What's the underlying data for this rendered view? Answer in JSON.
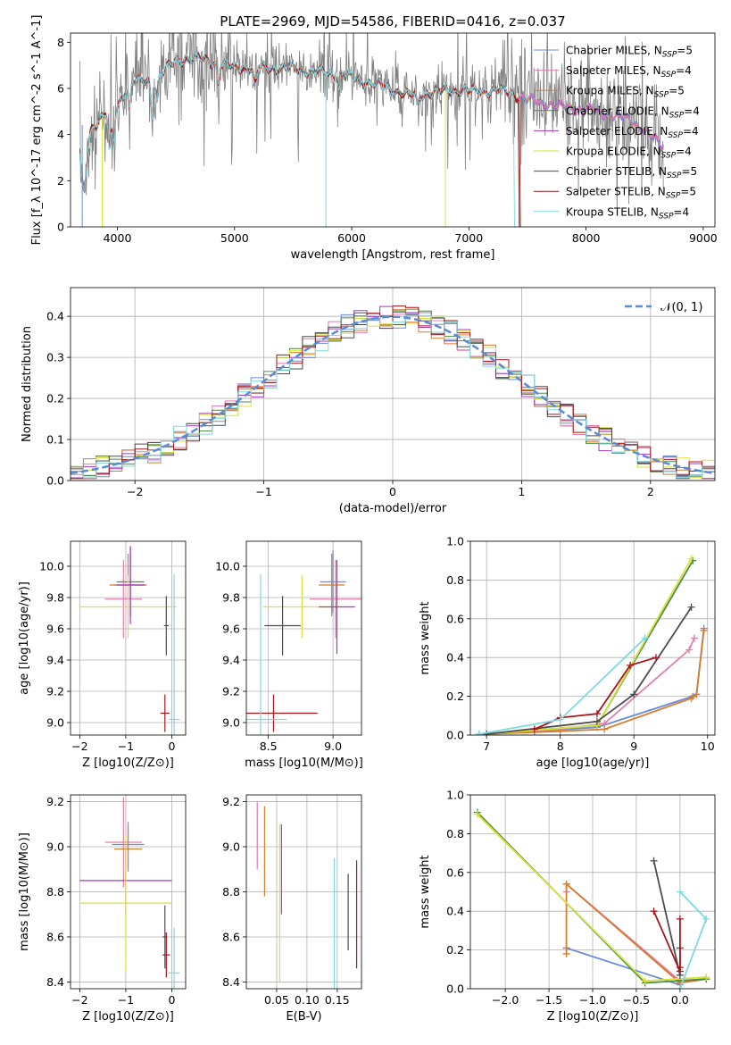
{
  "figure": {
    "title": "PLATE=2969, MJD=54586, FIBERID=0416, z=0.037"
  },
  "colors": {
    "Chabrier MILES": "#6a8bd8",
    "Salpeter MILES": "#e07fb0",
    "Kroupa MILES": "#d77c2b",
    "Chabrier ELODIE": "#4a8a4a",
    "Salpeter ELODIE": "#a23bc4",
    "Kroupa ELODIE": "#d9e23a",
    "Chabrier STELIB": "#4d4d4d",
    "Salpeter STELIB": "#a8151b",
    "Kroupa STELIB": "#7fd9e0",
    "data": "#808080",
    "extra_green": "#9ad23a",
    "normal_curve": "#5b8bd6"
  },
  "chart_data": [
    {
      "panel": "spectrum",
      "type": "line",
      "xlabel": "wavelength [Angstrom, rest frame]",
      "ylabel": "Flux [f_λ 10^-17 erg cm^-2 s^-1 A^-1]",
      "xlim": [
        3600,
        9100
      ],
      "ylim": [
        0,
        8.4
      ],
      "xticks": [
        4000,
        5000,
        6000,
        7000,
        8000,
        9000
      ],
      "yticks": [
        0,
        2,
        4,
        6,
        8
      ],
      "legend_position": "top-right",
      "legend": [
        {
          "name": "Chabrier MILES, N_SSP=5",
          "model": "Chabrier MILES"
        },
        {
          "name": "Salpeter MILES, N_SSP=4",
          "model": "Salpeter MILES"
        },
        {
          "name": "Kroupa MILES, N_SSP=5",
          "model": "Kroupa MILES"
        },
        {
          "name": "Chabrier ELODIE, N_SSP=4",
          "model": "Chabrier ELODIE"
        },
        {
          "name": "Salpeter ELODIE, N_SSP=4",
          "model": "Salpeter ELODIE"
        },
        {
          "name": "Kroupa ELODIE, N_SSP=4",
          "model": "Kroupa ELODIE"
        },
        {
          "name": "Chabrier STELIB, N_SSP=5",
          "model": "Chabrier STELIB"
        },
        {
          "name": "Salpeter STELIB, N_SSP=5",
          "model": "Salpeter STELIB"
        },
        {
          "name": "Kroupa STELIB, N_SSP=4",
          "model": "Kroupa STELIB"
        }
      ],
      "continuum_points": [
        [
          3680,
          4.5
        ],
        [
          3750,
          4.2
        ],
        [
          3900,
          4.9
        ],
        [
          4000,
          5.2
        ],
        [
          4100,
          6.3
        ],
        [
          4300,
          6.3
        ],
        [
          4500,
          7.2
        ],
        [
          4700,
          7.3
        ],
        [
          5000,
          6.9
        ],
        [
          5300,
          6.9
        ],
        [
          5600,
          6.8
        ],
        [
          5900,
          6.6
        ],
        [
          6200,
          6.2
        ],
        [
          6500,
          5.7
        ],
        [
          6800,
          5.9
        ],
        [
          7000,
          5.9
        ],
        [
          7300,
          5.9
        ],
        [
          7500,
          5.5
        ],
        [
          7800,
          5.2
        ],
        [
          8100,
          5.0
        ],
        [
          8400,
          4.6
        ],
        [
          8650,
          3.5
        ]
      ],
      "models_end": {
        "Chabrier STELIB": 7420,
        "Salpeter STELIB": 7430,
        "Kroupa MILES": 7420,
        "Kroupa STELIB": 7380
      }
    },
    {
      "panel": "residuals",
      "type": "histogram",
      "xlabel": "(data-model)/error",
      "ylabel": "Normed distribution",
      "xlim": [
        -2.5,
        2.5
      ],
      "ylim": [
        0,
        0.47
      ],
      "xticks": [
        -2,
        -1,
        0,
        1,
        2
      ],
      "yticks": [
        0.0,
        0.1,
        0.2,
        0.3,
        0.4
      ],
      "bin_width": 0.1,
      "reference_curve": "N(0,1)",
      "legend": [
        {
          "name": "𝒩(0, 1)"
        }
      ],
      "legend_position": "top-right"
    },
    {
      "panel": "age_vs_Z",
      "type": "errorbar",
      "xlabel": "Z [log10(Z/Z⊙)]",
      "ylabel": "age [log10(age/yr)]",
      "xlim": [
        -2.2,
        0.3
      ],
      "ylim": [
        8.92,
        10.16
      ],
      "xticks": [
        -2,
        -1,
        0
      ],
      "yticks": [
        9.0,
        9.2,
        9.4,
        9.6,
        9.8,
        10.0
      ],
      "points": [
        {
          "model": "Chabrier MILES",
          "x": -0.9,
          "xerr": 0.35,
          "y": 9.88,
          "yerr": 0.2
        },
        {
          "model": "Salpeter MILES",
          "x": -1.05,
          "xerr": 0.4,
          "y": 9.79,
          "yerr": 0.25
        },
        {
          "model": "Kroupa MILES",
          "x": -0.95,
          "xerr": 0.4,
          "y": 9.88,
          "yerr": 0.2
        },
        {
          "model": "Chabrier ELODIE",
          "x": -0.9,
          "xerr": 0.3,
          "y": 9.9,
          "yerr": 0.22
        },
        {
          "model": "Kroupa ELODIE",
          "x": -0.95,
          "xerr": 1.05,
          "y": 9.74,
          "yerr": 0.2
        },
        {
          "model": "Salpeter ELODIE",
          "x": -0.9,
          "xerr": 0.3,
          "y": 9.88,
          "yerr": 0.25
        },
        {
          "model": "Chabrier STELIB",
          "x": -0.12,
          "xerr": 0.05,
          "y": 9.62,
          "yerr": 0.19
        },
        {
          "model": "Salpeter STELIB",
          "x": -0.15,
          "xerr": 0.1,
          "y": 9.06,
          "yerr": 0.12
        },
        {
          "model": "Kroupa STELIB",
          "x": 0.05,
          "xerr": 0.12,
          "y": 9.02,
          "yerr": 0.93
        }
      ]
    },
    {
      "panel": "age_vs_mass",
      "type": "errorbar",
      "xlabel": "mass [log10(M/M⊙)]",
      "ylabel": "",
      "xlim": [
        8.33,
        9.22
      ],
      "ylim": [
        8.92,
        10.16
      ],
      "xticks": [
        8.5,
        9.0
      ],
      "yticks": [
        9.0,
        9.2,
        9.4,
        9.6,
        9.8,
        10.0
      ],
      "points": [
        {
          "model": "Chabrier MILES",
          "x": 9.0,
          "xerr": 0.1,
          "y": 9.9,
          "yerr": 0.2
        },
        {
          "model": "Salpeter MILES",
          "x": 9.02,
          "xerr": 0.2,
          "y": 9.79,
          "yerr": 0.25
        },
        {
          "model": "Kroupa MILES",
          "x": 8.99,
          "xerr": 0.1,
          "y": 9.88,
          "yerr": 0.2
        },
        {
          "model": "Kroupa ELODIE",
          "x": 8.76,
          "xerr": 0.3,
          "y": 9.74,
          "yerr": 0.2
        },
        {
          "model": "Salpeter ELODIE",
          "x": 9.03,
          "xerr": 0.14,
          "y": 9.74,
          "yerr": 0.3
        },
        {
          "model": "Chabrier STELIB",
          "x": 8.61,
          "xerr": 0.14,
          "y": 9.62,
          "yerr": 0.19
        },
        {
          "model": "Salpeter STELIB",
          "x": 8.54,
          "xerr": 0.34,
          "y": 9.06,
          "yerr": 0.12
        },
        {
          "model": "Kroupa STELIB",
          "x": 8.44,
          "xerr": 0.2,
          "y": 9.02,
          "yerr": 0.93
        }
      ]
    },
    {
      "panel": "mass_weight_vs_age",
      "type": "line",
      "xlabel": "age [log10(age/yr)]",
      "ylabel": "mass weight",
      "xlim": [
        6.78,
        10.1
      ],
      "ylim": [
        0,
        1.0
      ],
      "xticks": [
        7,
        8,
        9,
        10
      ],
      "yticks": [
        0.0,
        0.2,
        0.4,
        0.6,
        0.8,
        1.0
      ],
      "series": [
        {
          "model": "Chabrier MILES",
          "x": [
            6.9,
            7.65,
            8.5,
            9.8,
            9.85,
            9.95
          ],
          "y": [
            0.005,
            0.02,
            0.04,
            0.2,
            0.21,
            0.55
          ]
        },
        {
          "model": "Salpeter MILES",
          "x": [
            7.0,
            8.0,
            8.6,
            9.75,
            9.82
          ],
          "y": [
            0.005,
            0.03,
            0.06,
            0.44,
            0.5
          ]
        },
        {
          "model": "Kroupa MILES",
          "x": [
            7.0,
            8.0,
            8.6,
            9.78,
            9.85,
            9.95
          ],
          "y": [
            0.005,
            0.02,
            0.03,
            0.19,
            0.21,
            0.54
          ]
        },
        {
          "model": "Chabrier ELODIE",
          "x": [
            7.0,
            8.5,
            9.8
          ],
          "y": [
            0.005,
            0.05,
            0.9
          ]
        },
        {
          "model": "Kroupa ELODIE",
          "x": [
            7.0,
            8.5,
            9.78
          ],
          "y": [
            0.005,
            0.05,
            0.91
          ]
        },
        {
          "model": "Chabrier STELIB",
          "x": [
            7.0,
            8.5,
            9.0,
            9.78
          ],
          "y": [
            0.005,
            0.07,
            0.21,
            0.66
          ]
        },
        {
          "model": "Salpeter STELIB",
          "x": [
            7.65,
            8.0,
            8.5,
            8.95,
            9.3
          ],
          "y": [
            0.03,
            0.09,
            0.11,
            0.36,
            0.4
          ]
        },
        {
          "model": "Kroupa STELIB",
          "x": [
            6.9,
            8.0,
            9.15
          ],
          "y": [
            0.005,
            0.08,
            0.5
          ]
        }
      ]
    },
    {
      "panel": "mass_vs_Z",
      "type": "errorbar",
      "xlabel": "Z [log10(Z/Z⊙)]",
      "ylabel": "mass [log10(M/M⊙)]",
      "xlim": [
        -2.2,
        0.3
      ],
      "ylim": [
        8.37,
        9.23
      ],
      "xticks": [
        -2,
        -1,
        0
      ],
      "yticks": [
        8.4,
        8.6,
        8.8,
        9.0,
        9.2
      ],
      "points": [
        {
          "model": "Chabrier MILES",
          "x": -0.95,
          "xerr": 0.35,
          "y": 9.01,
          "yerr": 0.1
        },
        {
          "model": "Salpeter MILES",
          "x": -1.05,
          "xerr": 0.4,
          "y": 9.02,
          "yerr": 0.2
        },
        {
          "model": "Kroupa MILES",
          "x": -0.95,
          "xerr": 0.3,
          "y": 8.99,
          "yerr": 0.1
        },
        {
          "model": "Salpeter ELODIE",
          "x": -1.0,
          "xerr": 1.0,
          "y": 8.85,
          "yerr": 0.15
        },
        {
          "model": "Kroupa ELODIE",
          "x": -1.0,
          "xerr": 1.0,
          "y": 8.75,
          "yerr": 0.3
        },
        {
          "model": "Chabrier STELIB",
          "x": -0.15,
          "xerr": 0.05,
          "y": 8.6,
          "yerr": 0.14
        },
        {
          "model": "Salpeter STELIB",
          "x": -0.12,
          "xerr": 0.08,
          "y": 8.52,
          "yerr": 0.1
        },
        {
          "model": "Kroupa STELIB",
          "x": 0.05,
          "xerr": 0.12,
          "y": 8.44,
          "yerr": 0.2
        }
      ]
    },
    {
      "panel": "mass_vs_EBV",
      "type": "errorbar",
      "xlabel": "E(B-V)",
      "ylabel": "",
      "xlim": [
        0.0,
        0.19
      ],
      "ylim": [
        8.37,
        9.23
      ],
      "xticks": [
        0.05,
        0.1,
        0.15
      ],
      "yticks": [
        8.4,
        8.6,
        8.8,
        9.0,
        9.2
      ],
      "points": [
        {
          "model": "Salpeter MILES",
          "x": 0.018,
          "y": 9.05,
          "yerr": 0.15
        },
        {
          "model": "Kroupa MILES",
          "x": 0.03,
          "y": 8.98,
          "yerr": 0.2
        },
        {
          "model": "Salpeter ELODIE",
          "x": 0.058,
          "y": 8.9,
          "yerr": 0.2
        },
        {
          "model": "Kroupa ELODIE",
          "x": 0.055,
          "y": 8.75,
          "yerr": 0.35
        },
        {
          "model": "Kroupa STELIB",
          "x": 0.145,
          "y": 8.63,
          "yerr": 0.32
        },
        {
          "model": "Chabrier STELIB",
          "x": 0.168,
          "y": 8.71,
          "yerr": 0.17
        },
        {
          "model": "Salpeter STELIB",
          "x": 0.182,
          "y": 8.7,
          "yerr": 0.24
        }
      ]
    },
    {
      "panel": "mass_weight_vs_Z",
      "type": "line",
      "xlabel": "Z [log10(Z/Z⊙)]",
      "ylabel": "mass weight",
      "xlim": [
        -2.4,
        0.4
      ],
      "ylim": [
        0,
        1.0
      ],
      "xticks": [
        -2.0,
        -1.5,
        -1.0,
        -0.5,
        0.0
      ],
      "yticks": [
        0.0,
        0.2,
        0.4,
        0.6,
        0.8,
        1.0
      ],
      "series": [
        {
          "model": "Chabrier MILES",
          "x": [
            -1.3,
            0.0
          ],
          "y": [
            0.21,
            0.02
          ]
        },
        {
          "model": "Salpeter MILES",
          "x": [
            -1.3,
            -1.3,
            0.0,
            0.3
          ],
          "y": [
            0.5,
            0.54,
            0.04,
            0.05
          ]
        },
        {
          "model": "Kroupa MILES",
          "x": [
            -1.3,
            -1.3,
            -1.3,
            0.0,
            0.3
          ],
          "y": [
            0.21,
            0.18,
            0.54,
            0.03,
            0.05
          ]
        },
        {
          "model": "Chabrier ELODIE",
          "x": [
            -2.32,
            -0.4,
            0.3
          ],
          "y": [
            0.91,
            0.03,
            0.05
          ]
        },
        {
          "model": "Kroupa ELODIE",
          "x": [
            -2.32,
            -0.4,
            0.3
          ],
          "y": [
            0.9,
            0.04,
            0.06
          ]
        },
        {
          "model": "Chabrier STELIB",
          "x": [
            -0.3,
            0.0,
            0.0
          ],
          "y": [
            0.66,
            0.07,
            0.21
          ]
        },
        {
          "model": "Salpeter STELIB",
          "x": [
            -0.3,
            0.0,
            0.0,
            0.0
          ],
          "y": [
            0.4,
            0.09,
            0.11,
            0.36
          ]
        },
        {
          "model": "Kroupa STELIB",
          "x": [
            0.0,
            0.3,
            0.0
          ],
          "y": [
            0.5,
            0.36,
            0.0
          ]
        }
      ]
    }
  ]
}
